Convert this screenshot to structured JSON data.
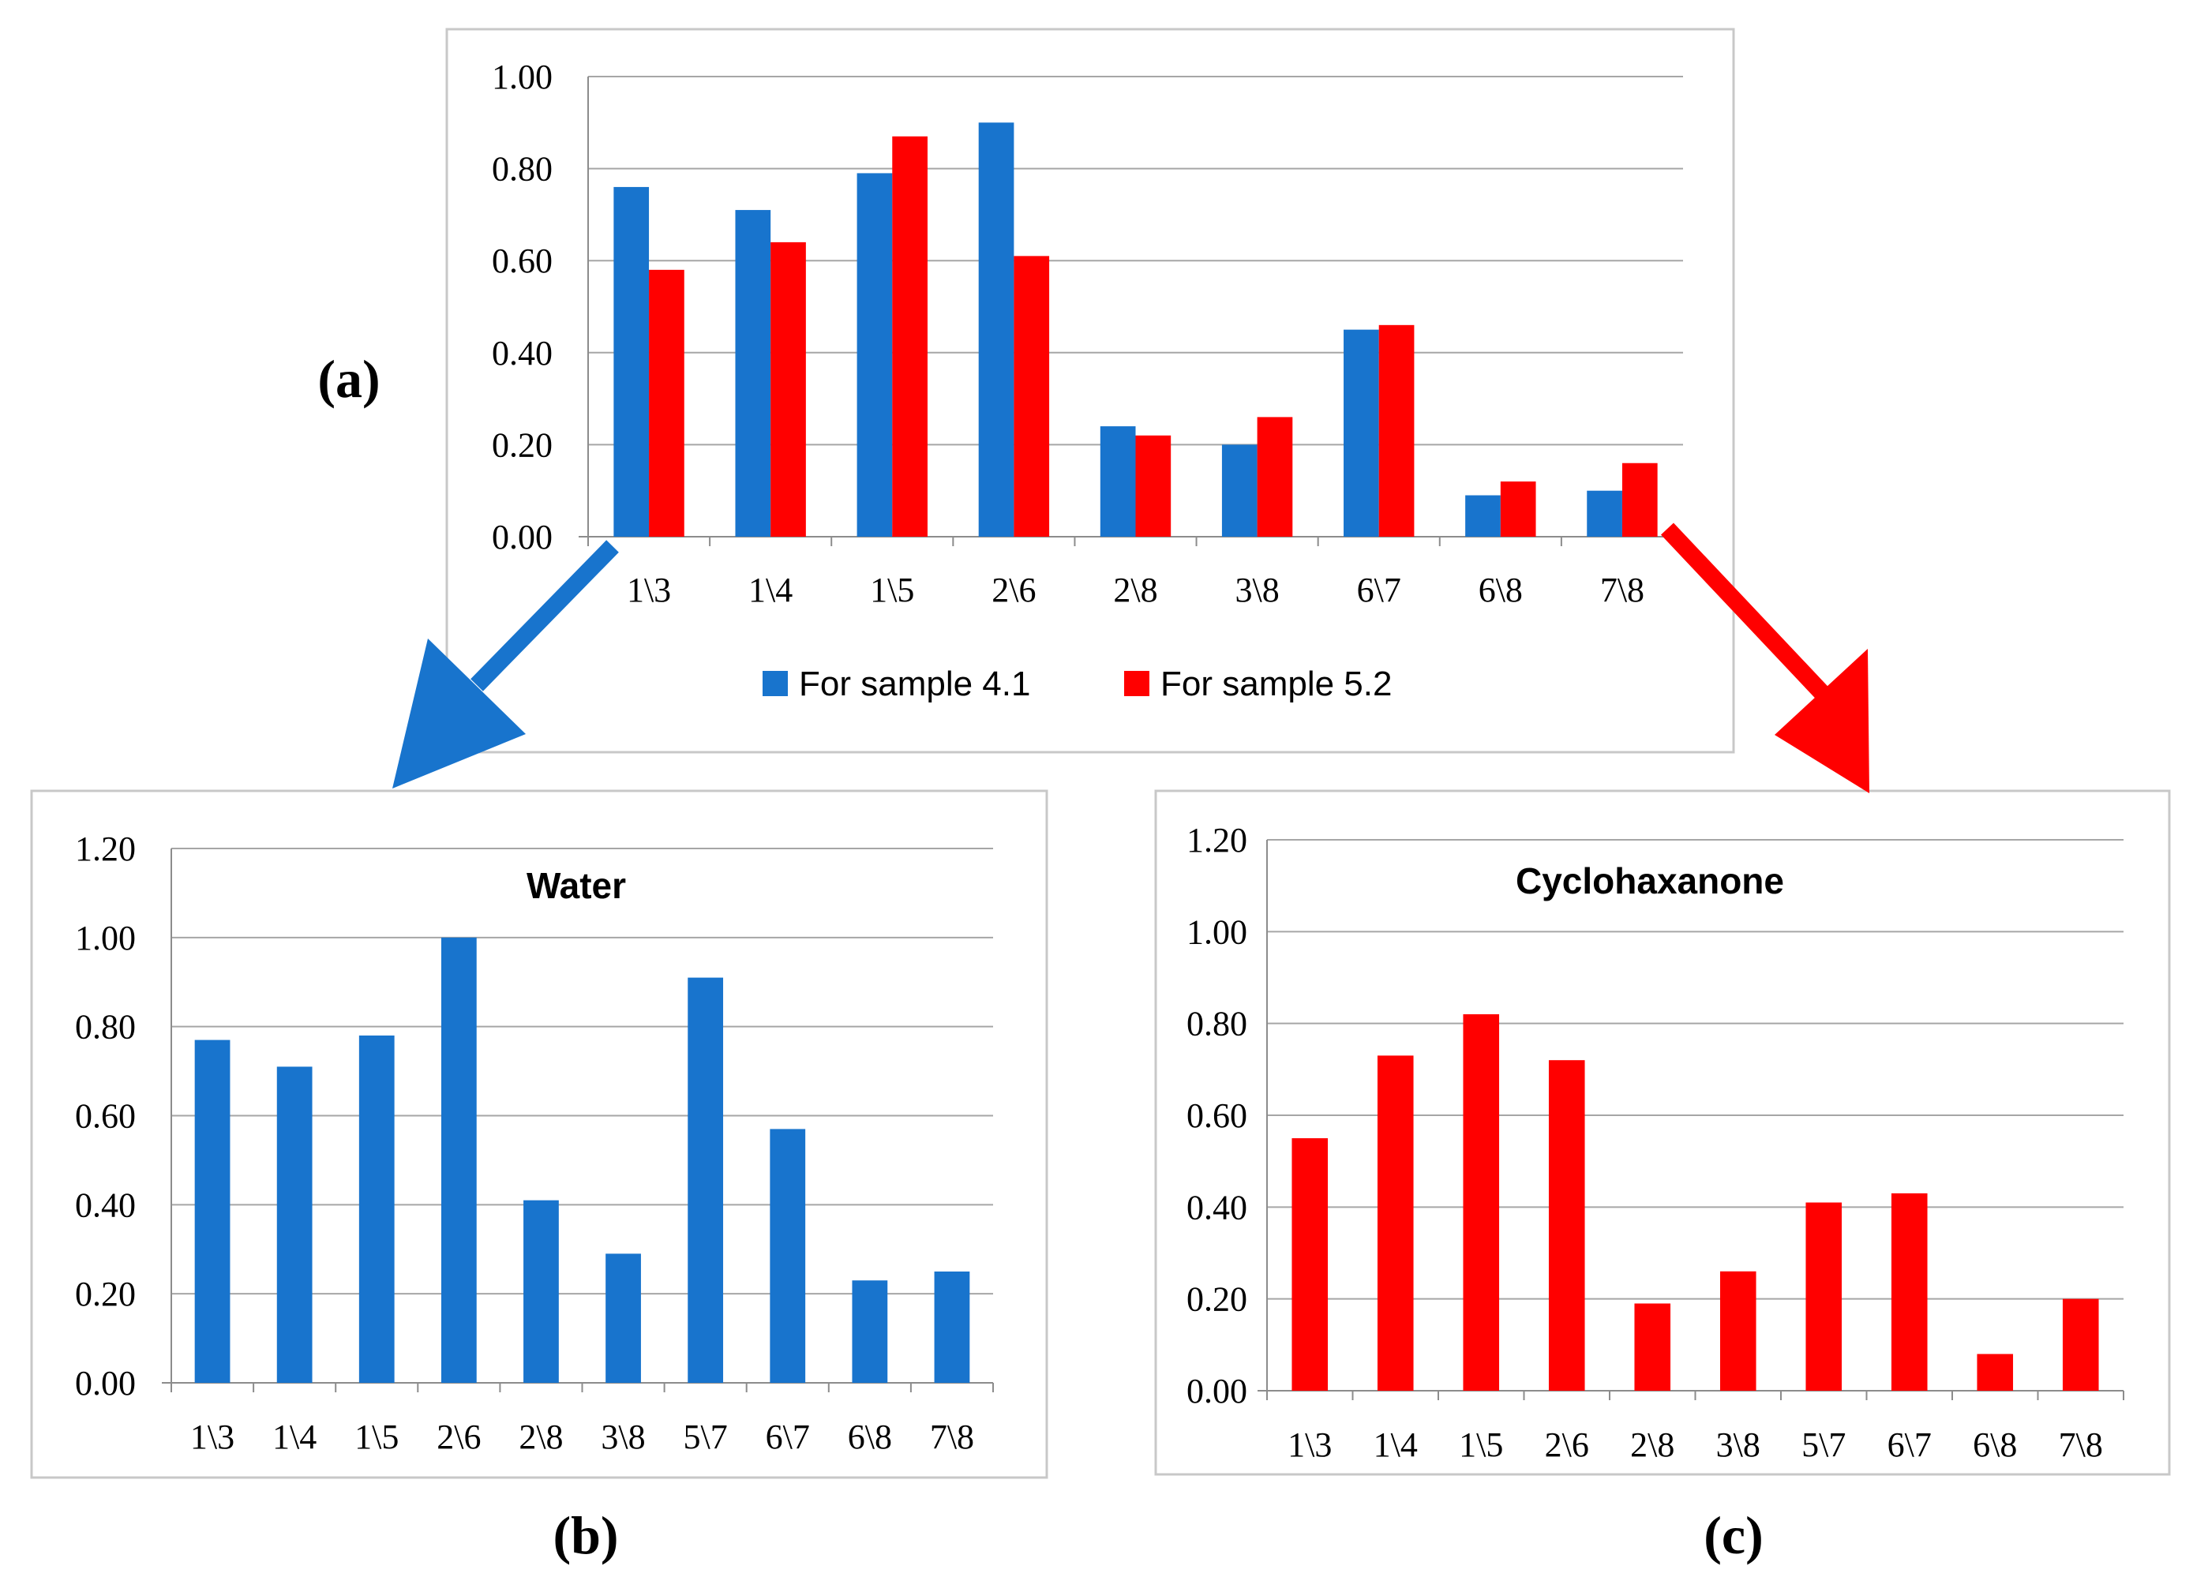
{
  "figure": {
    "panel_labels": {
      "a": "(a)",
      "b": "(b)",
      "c": "(c)"
    }
  },
  "colors": {
    "blue": "#1874CD",
    "red": "#FF0000",
    "grid": "#a6a6a6",
    "frame": "#c8c8c8"
  },
  "chart_data": [
    {
      "id": "a",
      "type": "bar",
      "title": "",
      "xlabel": "",
      "ylabel": "",
      "categories": [
        "1\\3",
        "1\\4",
        "1\\5",
        "2\\6",
        "2\\8",
        "3\\8",
        "6\\7",
        "6\\8",
        "7\\8"
      ],
      "series": [
        {
          "name": "For sample 4.1",
          "color": "#1874CD",
          "values": [
            0.76,
            0.71,
            0.79,
            0.9,
            0.24,
            0.2,
            0.45,
            0.09,
            0.1
          ]
        },
        {
          "name": "For sample 5.2",
          "color": "#FF0000",
          "values": [
            0.58,
            0.64,
            0.87,
            0.61,
            0.22,
            0.26,
            0.46,
            0.12,
            0.16
          ]
        }
      ],
      "ylim": [
        0,
        1.0
      ],
      "yticks": [
        "0.00",
        "0.20",
        "0.40",
        "0.60",
        "0.80",
        "1.00"
      ],
      "legend": "bottom-center"
    },
    {
      "id": "b",
      "type": "bar",
      "title": "Water",
      "xlabel": "",
      "ylabel": "",
      "categories": [
        "1\\3",
        "1\\4",
        "1\\5",
        "2\\6",
        "2\\8",
        "3\\8",
        "5\\7",
        "6\\7",
        "6\\8",
        "7\\8"
      ],
      "series": [
        {
          "name": "Water",
          "color": "#1874CD",
          "values": [
            0.77,
            0.71,
            0.78,
            1.0,
            0.41,
            0.29,
            0.91,
            0.57,
            0.23,
            0.25
          ]
        }
      ],
      "ylim": [
        0,
        1.2
      ],
      "yticks": [
        "0.00",
        "0.20",
        "0.40",
        "0.60",
        "0.80",
        "1.00",
        "1.20"
      ]
    },
    {
      "id": "c",
      "type": "bar",
      "title": "Cyclohaxanone",
      "xlabel": "",
      "ylabel": "",
      "categories": [
        "1\\3",
        "1\\4",
        "1\\5",
        "2\\6",
        "2\\8",
        "3\\8",
        "5\\7",
        "6\\7",
        "6\\8",
        "7\\8"
      ],
      "series": [
        {
          "name": "Cyclohaxanone",
          "color": "#FF0000",
          "values": [
            0.55,
            0.73,
            0.82,
            0.72,
            0.19,
            0.26,
            0.41,
            0.43,
            0.08,
            0.2
          ]
        }
      ],
      "ylim": [
        0,
        1.2
      ],
      "yticks": [
        "0.00",
        "0.20",
        "0.40",
        "0.60",
        "0.80",
        "1.00",
        "1.20"
      ]
    }
  ]
}
